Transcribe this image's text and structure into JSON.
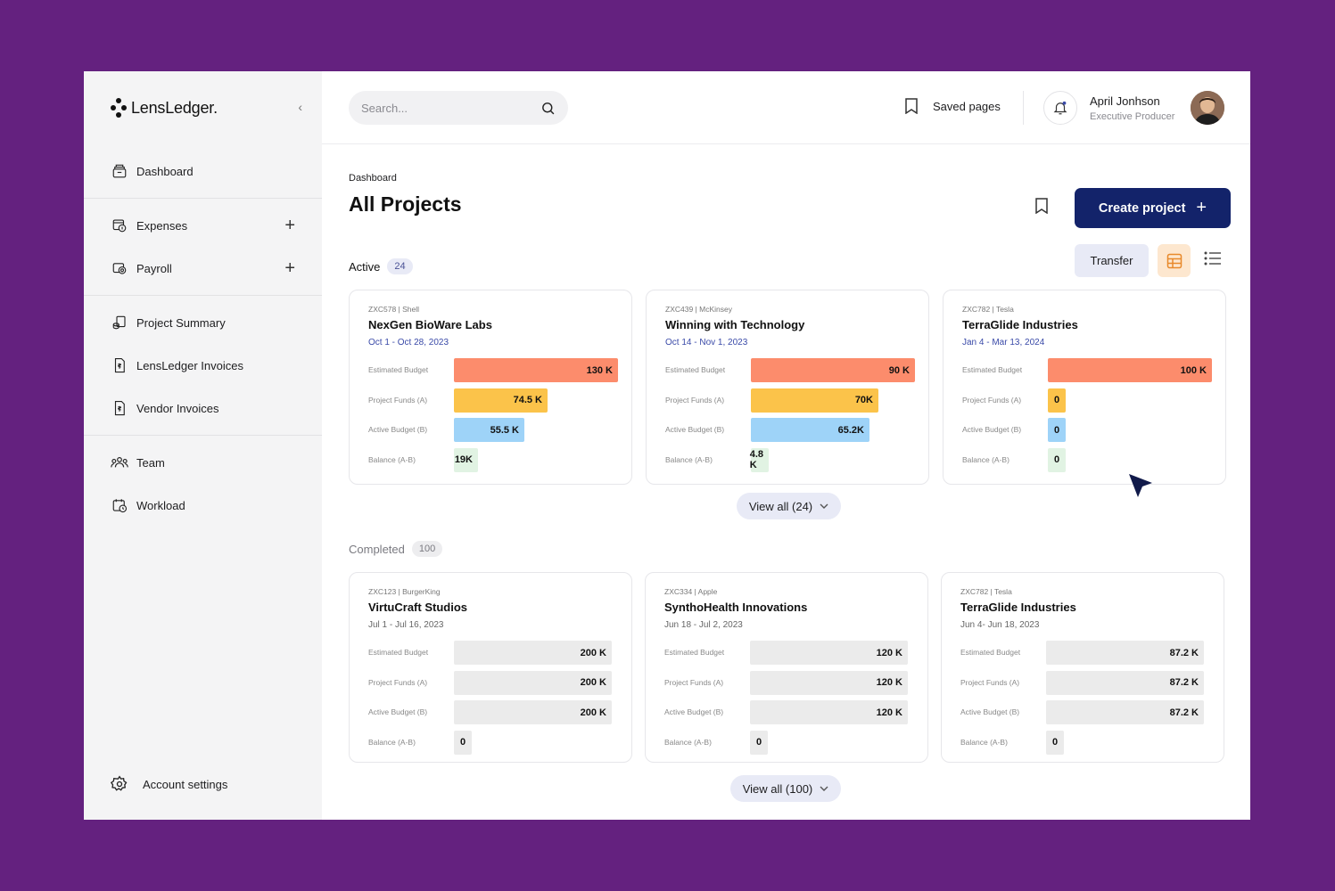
{
  "brand": {
    "name": "LensLedger."
  },
  "sidebar": {
    "groups": [
      [
        {
          "label": "Dashboard",
          "icon": "archive-icon"
        }
      ],
      [
        {
          "label": "Expenses",
          "icon": "coins-icon",
          "plus": true
        },
        {
          "label": "Payroll",
          "icon": "payroll-icon",
          "plus": true
        }
      ],
      [
        {
          "label": "Project Summary",
          "icon": "summary-icon"
        },
        {
          "label": "LensLedger Invoices",
          "icon": "invoice-icon"
        },
        {
          "label": "Vendor Invoices",
          "icon": "invoice-icon"
        }
      ],
      [
        {
          "label": "Team",
          "icon": "team-icon"
        },
        {
          "label": "Workload",
          "icon": "workload-icon"
        }
      ]
    ],
    "account_label": "Account settings"
  },
  "search": {
    "placeholder": "Search..."
  },
  "header": {
    "saved_label": "Saved pages",
    "user_name": "April Jonhson",
    "user_role": "Executive Producer"
  },
  "page": {
    "breadcrumb": "Dashboard",
    "title": "All Projects",
    "create_label": "Create project",
    "transfer_label": "Transfer"
  },
  "colors": {
    "estimated": "#fc8c6c",
    "funds": "#fbc34a",
    "active": "#9ed3f8",
    "balance": "#e1f3e3",
    "neutral": "#ebebeb",
    "accent": "#13236a"
  },
  "row_labels": [
    "Estimated Budget",
    "Project Funds (A)",
    "Active Budget (B)",
    "Balance (A-B)"
  ],
  "active": {
    "label": "Active",
    "count": "24",
    "view_all": "View all (24)",
    "projects": [
      {
        "meta": "ZXC578 | Shell",
        "name": "NexGen BioWare Labs",
        "dates": "Oct 1 - Oct 28, 2023",
        "values": [
          "130 K",
          "74.5 K",
          "55.5 K",
          "19K"
        ],
        "amounts": [
          130,
          74.5,
          55.5,
          19
        ]
      },
      {
        "meta": "ZXC439 | McKinsey",
        "name": "Winning with Technology",
        "dates": "Oct 14 - Nov 1, 2023",
        "values": [
          "90 K",
          "70K",
          "65.2K",
          "4.8 K"
        ],
        "amounts": [
          90,
          70,
          65.2,
          4.8
        ]
      },
      {
        "meta": "ZXC782 | Tesla",
        "name": "TerraGlide Industries",
        "dates": "Jan 4 - Mar 13, 2024",
        "values": [
          "100 K",
          "0",
          "0",
          "0"
        ],
        "amounts": [
          100,
          0,
          0,
          0
        ]
      }
    ]
  },
  "completed": {
    "label": "Completed",
    "count": "100",
    "view_all": "View all (100)",
    "projects": [
      {
        "meta": "ZXC123 | BurgerKing",
        "name": "VirtuCraft Studios",
        "dates": "Jul 1 - Jul 16, 2023",
        "values": [
          "200 K",
          "200 K",
          "200 K",
          "0"
        ],
        "amounts": [
          200,
          200,
          200,
          0
        ]
      },
      {
        "meta": "ZXC334 | Apple",
        "name": "SynthoHealth Innovations",
        "dates": "Jun 18 - Jul 2, 2023",
        "values": [
          "120 K",
          "120 K",
          "120 K",
          "0"
        ],
        "amounts": [
          120,
          120,
          120,
          0
        ]
      },
      {
        "meta": "ZXC782 | Tesla",
        "name": "TerraGlide Industries",
        "dates": "Jun 4- Jun 18, 2023",
        "values": [
          "87.2 K",
          "87.2 K",
          "87.2 K",
          "0"
        ],
        "amounts": [
          87.2,
          87.2,
          87.2,
          0
        ]
      }
    ]
  }
}
